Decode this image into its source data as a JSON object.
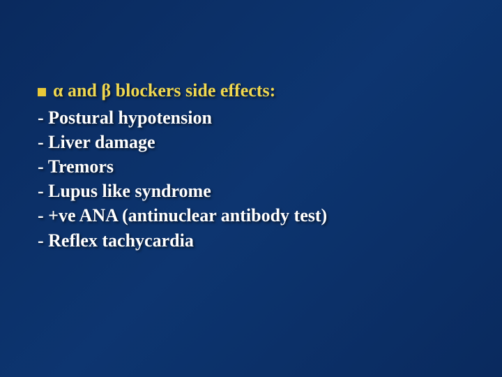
{
  "slide": {
    "background_gradient": [
      "#0a2a5e",
      "#0d3570",
      "#0a2a5e"
    ],
    "bullet_color": "#e8c838",
    "title_color": "#f0d850",
    "item_color": "#ffffff",
    "font_size": 26,
    "title": "α and β blockers side effects:",
    "items": [
      "- Postural hypotension",
      "- Liver damage",
      "- Tremors",
      "- Lupus like syndrome",
      "- +ve ANA (antinuclear antibody test)",
      "- Reflex tachycardia"
    ]
  }
}
